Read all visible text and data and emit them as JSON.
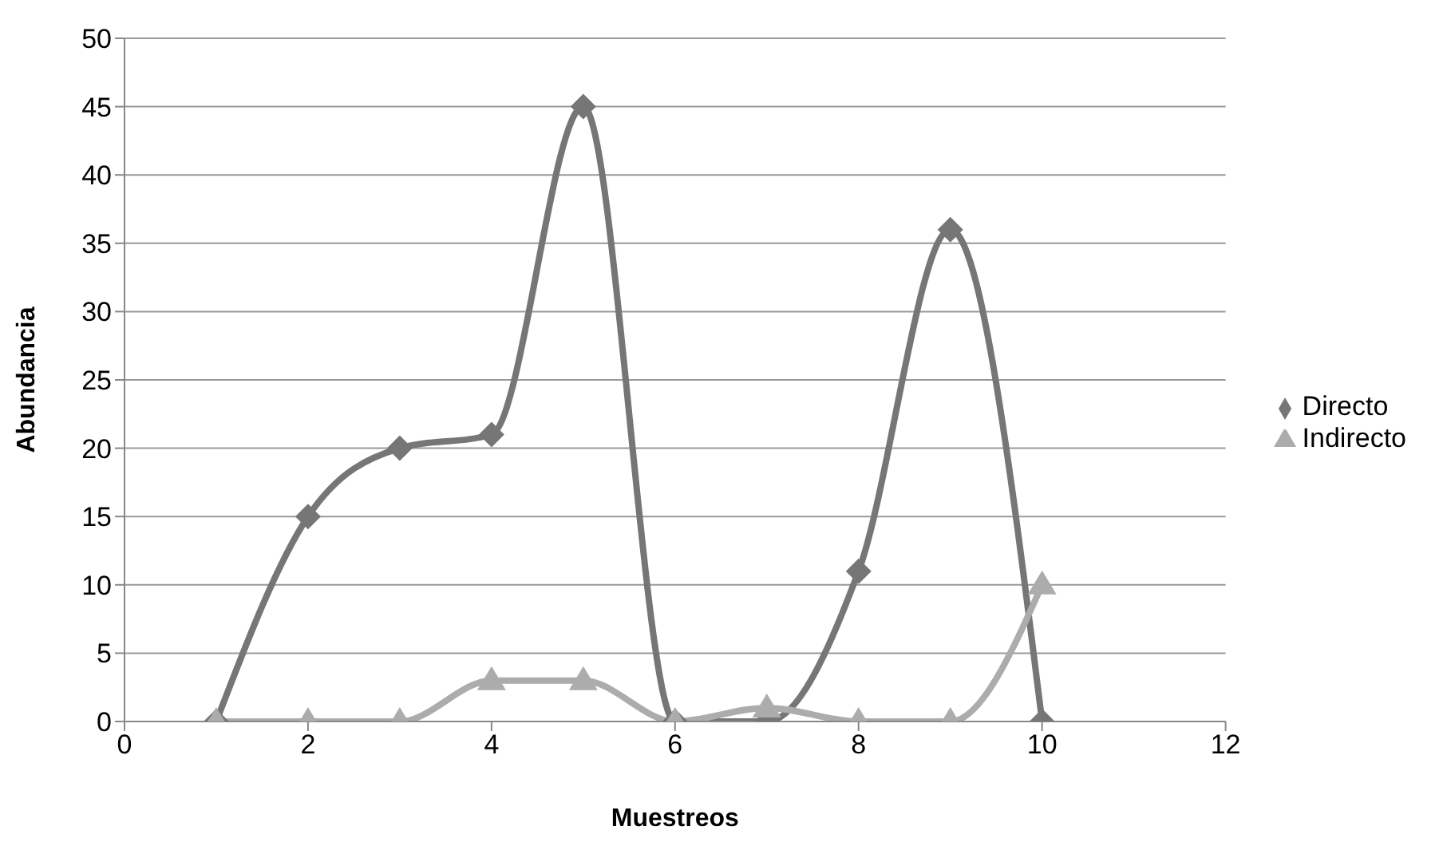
{
  "chart_data": {
    "type": "line",
    "xlabel": "Muestreos",
    "ylabel": "Abundancia",
    "x": [
      1,
      2,
      3,
      4,
      5,
      6,
      7,
      8,
      9,
      10
    ],
    "series": [
      {
        "name": "Directo",
        "color": "#767676",
        "marker": "diamond",
        "values": [
          0,
          15,
          20,
          21,
          45,
          0,
          0,
          11,
          36,
          0
        ]
      },
      {
        "name": "Indirecto",
        "color": "#acacac",
        "marker": "triangle",
        "values": [
          0,
          0,
          0,
          3,
          3,
          0,
          1,
          0,
          0,
          10
        ]
      }
    ],
    "xlim": [
      0,
      12
    ],
    "xticks": [
      0,
      2,
      4,
      6,
      8,
      10,
      12
    ],
    "ylim": [
      0,
      50
    ],
    "yticks": [
      0,
      5,
      10,
      15,
      20,
      25,
      30,
      35,
      40,
      45,
      50
    ],
    "grid": "y",
    "legend": "right"
  }
}
